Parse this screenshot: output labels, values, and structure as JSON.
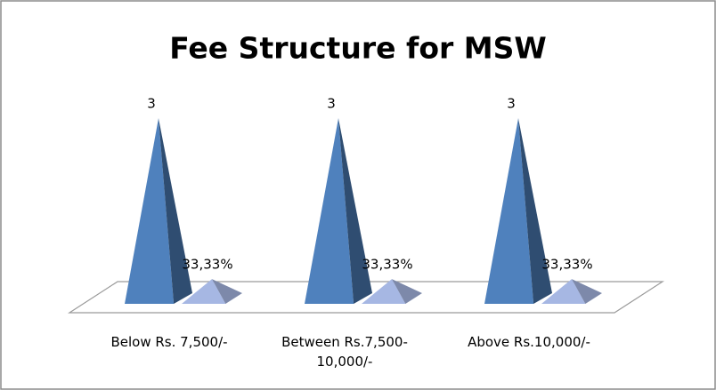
{
  "chart_data": {
    "type": "pyramid3d",
    "title": "Fee Structure for MSW",
    "categories": [
      "Below Rs. 7,500/-",
      "Between Rs.7,500-10,000/-",
      "Above Rs.10,000/-"
    ],
    "series": [
      {
        "color": "#4f81bd",
        "values": [
          3,
          3,
          3
        ]
      },
      {
        "color": "#a6b7e3",
        "values": [
          33.33,
          33.33,
          33.33
        ],
        "value_labels": [
          "33,33%",
          "33,33%",
          "33,33%"
        ],
        "axis": "y2"
      }
    ],
    "ylim": [
      0,
      3
    ],
    "y2lim": [
      0,
      250
    ]
  }
}
